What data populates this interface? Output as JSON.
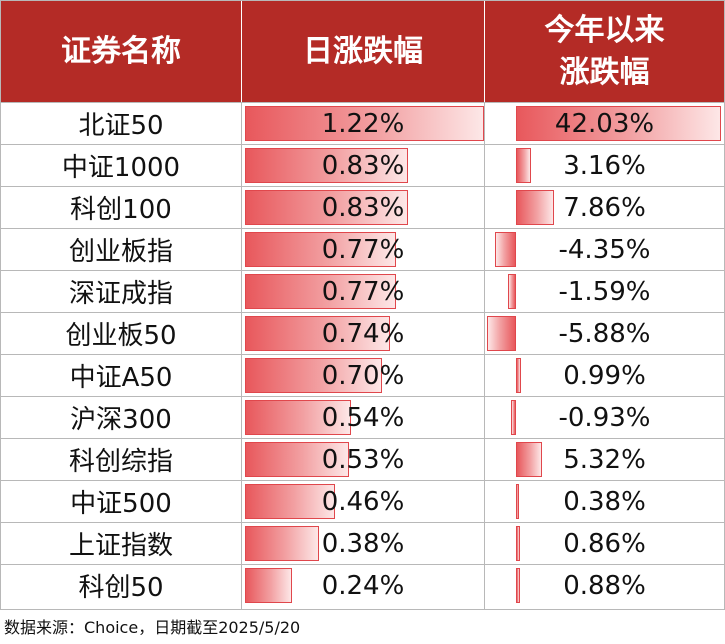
{
  "header": {
    "col1": "证券名称",
    "col2": "日涨跌幅",
    "col3_line1": "今年以来",
    "col3_line2": "涨跌幅"
  },
  "footnote": "数据来源：Choice，日期截至2025/5/20",
  "colors": {
    "header_bg": "#b42b26",
    "bar": "#e8585c"
  },
  "chart_data": {
    "type": "table",
    "columns": [
      "证券名称",
      "日涨跌幅",
      "今年以来涨跌幅"
    ],
    "rows": [
      {
        "name": "北证50",
        "day": 1.22,
        "day_label": "1.22%",
        "ytd": 42.03,
        "ytd_label": "42.03%"
      },
      {
        "name": "中证1000",
        "day": 0.83,
        "day_label": "0.83%",
        "ytd": 3.16,
        "ytd_label": "3.16%"
      },
      {
        "name": "科创100",
        "day": 0.83,
        "day_label": "0.83%",
        "ytd": 7.86,
        "ytd_label": "7.86%"
      },
      {
        "name": "创业板指",
        "day": 0.77,
        "day_label": "0.77%",
        "ytd": -4.35,
        "ytd_label": "-4.35%"
      },
      {
        "name": "深证成指",
        "day": 0.77,
        "day_label": "0.77%",
        "ytd": -1.59,
        "ytd_label": "-1.59%"
      },
      {
        "name": "创业板50",
        "day": 0.74,
        "day_label": "0.74%",
        "ytd": -5.88,
        "ytd_label": "-5.88%"
      },
      {
        "name": "中证A50",
        "day": 0.7,
        "day_label": "0.70%",
        "ytd": 0.99,
        "ytd_label": "0.99%"
      },
      {
        "name": "沪深300",
        "day": 0.54,
        "day_label": "0.54%",
        "ytd": -0.93,
        "ytd_label": "-0.93%"
      },
      {
        "name": "科创综指",
        "day": 0.53,
        "day_label": "0.53%",
        "ytd": 5.32,
        "ytd_label": "5.32%"
      },
      {
        "name": "中证500",
        "day": 0.46,
        "day_label": "0.46%",
        "ytd": 0.38,
        "ytd_label": "0.38%"
      },
      {
        "name": "上证指数",
        "day": 0.38,
        "day_label": "0.38%",
        "ytd": 0.86,
        "ytd_label": "0.86%"
      },
      {
        "name": "科创50",
        "day": 0.24,
        "day_label": "0.24%",
        "ytd": 0.88,
        "ytd_label": "0.88%"
      }
    ]
  }
}
